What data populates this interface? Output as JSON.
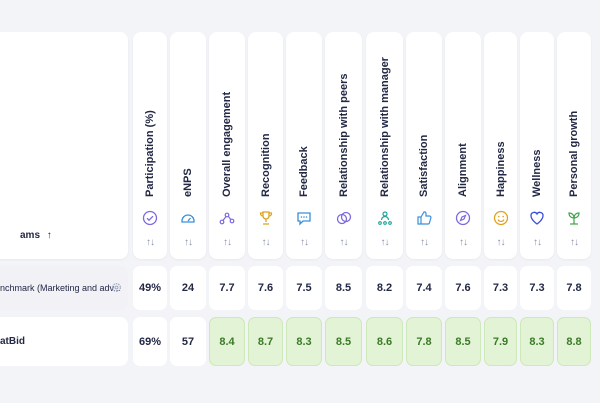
{
  "teams_header": {
    "label": "ams",
    "sort_icon": "↑"
  },
  "sort_icon": "↑↓",
  "columns": [
    {
      "key": "participation",
      "title": "Participation (%)",
      "icon": "check-circle-icon"
    },
    {
      "key": "enps",
      "title": "eNPS",
      "icon": "gauge-icon"
    },
    {
      "key": "overall",
      "title": "Overall engagement",
      "icon": "nodes-icon"
    },
    {
      "key": "recognition",
      "title": "Recognition",
      "icon": "trophy-icon"
    },
    {
      "key": "feedback",
      "title": "Feedback",
      "icon": "chat-icon"
    },
    {
      "key": "peers",
      "title": "Relationship with peers",
      "icon": "coins-icon"
    },
    {
      "key": "manager",
      "title": "Relationship with manager",
      "icon": "people-icon"
    },
    {
      "key": "satisfaction",
      "title": "Satisfaction",
      "icon": "thumbs-up-icon"
    },
    {
      "key": "alignment",
      "title": "Alignment",
      "icon": "compass-icon"
    },
    {
      "key": "happiness",
      "title": "Happiness",
      "icon": "smile-icon"
    },
    {
      "key": "wellness",
      "title": "Wellness",
      "icon": "heart-icon"
    },
    {
      "key": "growth",
      "title": "Personal growth",
      "icon": "sprout-icon"
    }
  ],
  "rows": [
    {
      "label": "nchmark (Marketing and adv...",
      "values": [
        "49%",
        "24",
        "7.7",
        "7.6",
        "7.5",
        "8.5",
        "8.2",
        "7.4",
        "7.6",
        "7.3",
        "7.3",
        "7.8"
      ]
    },
    {
      "label": "atBid",
      "values": [
        "69%",
        "57",
        "8.4",
        "8.7",
        "8.3",
        "8.5",
        "8.6",
        "7.8",
        "8.5",
        "7.9",
        "8.3",
        "8.8"
      ]
    }
  ],
  "colors": {
    "highlight_bg": "#e3f3d6",
    "highlight_text": "#3b7a27",
    "icon_accent": "#7b6be0"
  }
}
